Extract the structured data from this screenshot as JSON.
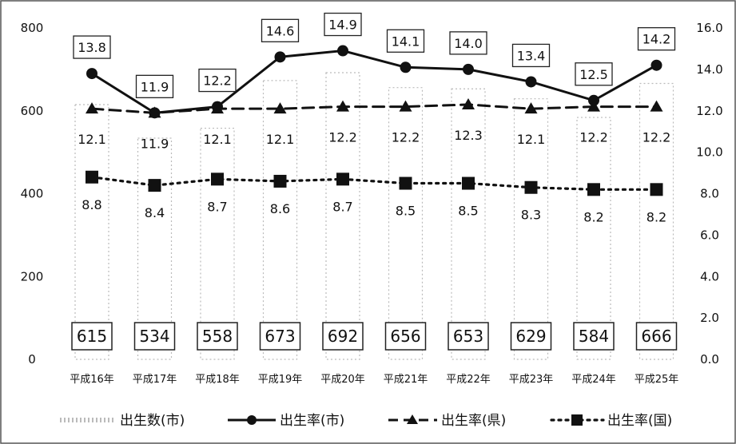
{
  "chart_data": {
    "type": "bar+line",
    "categories": [
      "平成16年",
      "平成17年",
      "平成18年",
      "平成19年",
      "平成20年",
      "平成21年",
      "平成22年",
      "平成23年",
      "平成24年",
      "平成25年"
    ],
    "left_axis": {
      "ylim": [
        0,
        800
      ],
      "ticks": [
        "0",
        "200",
        "400",
        "600",
        "800"
      ]
    },
    "right_axis": {
      "ylim": [
        0,
        16
      ],
      "ticks": [
        "0.0",
        "2.0",
        "4.0",
        "6.0",
        "8.0",
        "10.0",
        "12.0",
        "14.0",
        "16.0"
      ]
    },
    "bars": {
      "name": "出生数(市)",
      "values": [
        615,
        534,
        558,
        673,
        692,
        656,
        653,
        629,
        584,
        666
      ],
      "labels": [
        "615",
        "534",
        "558",
        "673",
        "692",
        "656",
        "653",
        "629",
        "584",
        "666"
      ]
    },
    "series": [
      {
        "name": "出生率(市)",
        "axis": "right",
        "style": "solid-circle",
        "values": [
          13.8,
          11.9,
          12.2,
          14.6,
          14.9,
          14.1,
          14.0,
          13.4,
          12.5,
          14.2
        ],
        "labels": [
          "13.8",
          "11.9",
          "12.2",
          "14.6",
          "14.9",
          "14.1",
          "14.0",
          "13.4",
          "12.5",
          "14.2"
        ]
      },
      {
        "name": "出生率(県)",
        "axis": "right",
        "style": "dashed-triangle",
        "values": [
          12.1,
          11.9,
          12.1,
          12.1,
          12.2,
          12.2,
          12.3,
          12.1,
          12.2,
          12.2
        ],
        "labels": [
          "12.1",
          "11.9",
          "12.1",
          "12.1",
          "12.2",
          "12.2",
          "12.3",
          "12.1",
          "12.2",
          "12.2"
        ]
      },
      {
        "name": "出生率(国)",
        "axis": "right",
        "style": "dotted-square",
        "values": [
          8.8,
          8.4,
          8.7,
          8.6,
          8.7,
          8.5,
          8.5,
          8.3,
          8.2,
          8.2
        ],
        "labels": [
          "8.8",
          "8.4",
          "8.7",
          "8.6",
          "8.7",
          "8.5",
          "8.5",
          "8.3",
          "8.2",
          "8.2"
        ]
      }
    ],
    "legend": {
      "position": "bottom",
      "items": [
        "出生数(市)",
        "出生率(市)",
        "出生率(県)",
        "出生率(国)"
      ]
    },
    "grid": false
  }
}
